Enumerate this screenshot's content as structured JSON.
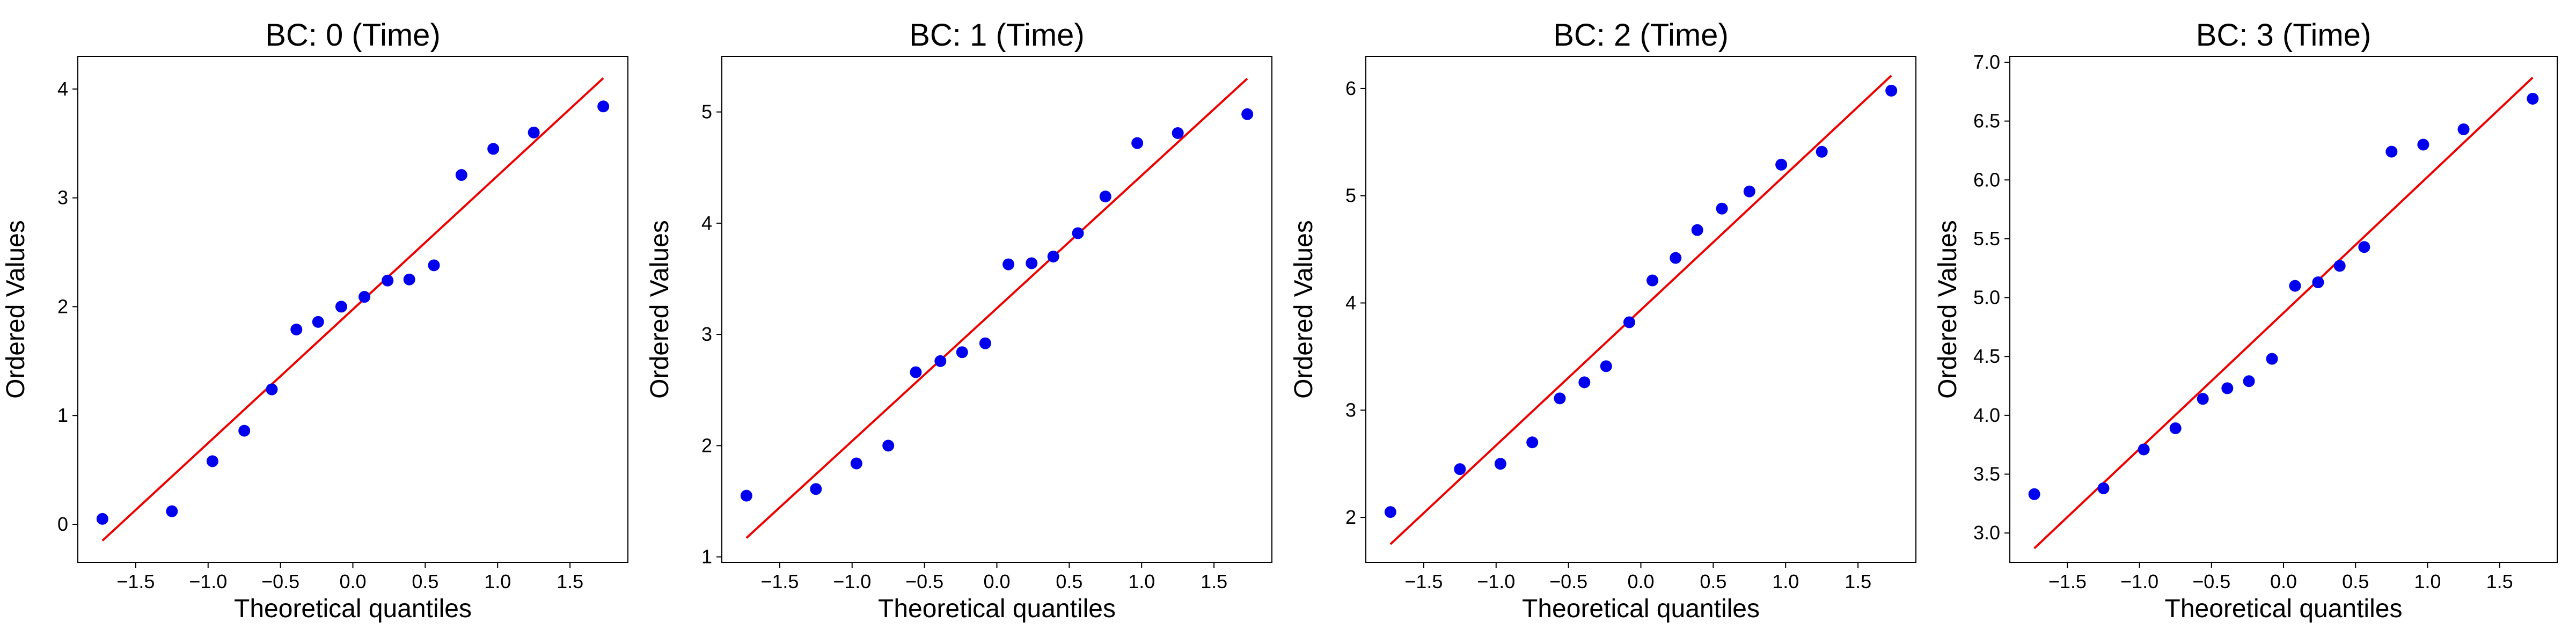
{
  "chart_data": [
    {
      "type": "scatter",
      "title": "BC: 0 (Time)",
      "xlabel": "Theoretical quantiles",
      "ylabel": "Ordered Values",
      "xlim": [
        -1.9,
        1.9
      ],
      "ylim": [
        -0.35,
        4.3
      ],
      "xticks": [
        -1.5,
        -1.0,
        -0.5,
        0.0,
        0.5,
        1.0,
        1.5
      ],
      "xtick_labels": [
        "−1.5",
        "−1.0",
        "−0.5",
        "0.0",
        "0.5",
        "1.0",
        "1.5"
      ],
      "yticks": [
        0,
        1,
        2,
        3,
        4
      ],
      "ytick_labels": [
        "0",
        "1",
        "2",
        "3",
        "4"
      ],
      "x": [
        -1.73,
        -1.25,
        -0.97,
        -0.75,
        -0.56,
        -0.39,
        -0.24,
        -0.08,
        0.08,
        0.24,
        0.39,
        0.56,
        0.75,
        0.97,
        1.25,
        1.73
      ],
      "y": [
        0.05,
        0.12,
        0.58,
        0.86,
        1.24,
        1.79,
        1.86,
        2.0,
        2.09,
        2.24,
        2.25,
        2.38,
        3.21,
        3.45,
        3.6,
        3.84
      ],
      "fit_line": {
        "x": [
          -1.73,
          1.73
        ],
        "y": [
          -0.15,
          4.1
        ]
      },
      "point_color": "#0000ee",
      "line_color": "#ee0000",
      "grid": false
    },
    {
      "type": "scatter",
      "title": "BC: 1 (Time)",
      "xlabel": "Theoretical quantiles",
      "ylabel": "Ordered Values",
      "xlim": [
        -1.9,
        1.9
      ],
      "ylim": [
        0.95,
        5.5
      ],
      "xticks": [
        -1.5,
        -1.0,
        -0.5,
        0.0,
        0.5,
        1.0,
        1.5
      ],
      "xtick_labels": [
        "−1.5",
        "−1.0",
        "−0.5",
        "0.0",
        "0.5",
        "1.0",
        "1.5"
      ],
      "yticks": [
        1,
        2,
        3,
        4,
        5
      ],
      "ytick_labels": [
        "1",
        "2",
        "3",
        "4",
        "5"
      ],
      "x": [
        -1.73,
        -1.25,
        -0.97,
        -0.75,
        -0.56,
        -0.39,
        -0.24,
        -0.08,
        0.08,
        0.24,
        0.39,
        0.56,
        0.75,
        0.97,
        1.25,
        1.73
      ],
      "y": [
        1.55,
        1.61,
        1.84,
        2.0,
        2.66,
        2.76,
        2.84,
        2.92,
        3.63,
        3.64,
        3.7,
        3.91,
        4.24,
        4.72,
        4.81,
        4.98
      ],
      "fit_line": {
        "x": [
          -1.73,
          1.73
        ],
        "y": [
          1.17,
          5.3
        ]
      },
      "point_color": "#0000ee",
      "line_color": "#ee0000",
      "grid": false
    },
    {
      "type": "scatter",
      "title": "BC: 2 (Time)",
      "xlabel": "Theoretical quantiles",
      "ylabel": "Ordered Values",
      "xlim": [
        -1.9,
        1.9
      ],
      "ylim": [
        1.58,
        6.3
      ],
      "xticks": [
        -1.5,
        -1.0,
        -0.5,
        0.0,
        0.5,
        1.0,
        1.5
      ],
      "xtick_labels": [
        "−1.5",
        "−1.0",
        "−0.5",
        "0.0",
        "0.5",
        "1.0",
        "1.5"
      ],
      "yticks": [
        2,
        3,
        4,
        5,
        6
      ],
      "ytick_labels": [
        "2",
        "3",
        "4",
        "5",
        "6"
      ],
      "x": [
        -1.73,
        -1.25,
        -0.97,
        -0.75,
        -0.56,
        -0.39,
        -0.24,
        -0.08,
        0.08,
        0.24,
        0.39,
        0.56,
        0.75,
        0.97,
        1.25,
        1.73
      ],
      "y": [
        2.05,
        2.45,
        2.5,
        2.7,
        3.11,
        3.26,
        3.41,
        3.82,
        4.21,
        4.42,
        4.68,
        4.88,
        5.04,
        5.29,
        5.41,
        5.98
      ],
      "fit_line": {
        "x": [
          -1.73,
          1.73
        ],
        "y": [
          1.75,
          6.12
        ]
      },
      "point_color": "#0000ee",
      "line_color": "#ee0000",
      "grid": false
    },
    {
      "type": "scatter",
      "title": "BC: 3 (Time)",
      "xlabel": "Theoretical quantiles",
      "ylabel": "Ordered Values",
      "xlim": [
        -1.9,
        1.9
      ],
      "ylim": [
        2.75,
        7.05
      ],
      "xticks": [
        -1.5,
        -1.0,
        -0.5,
        0.0,
        0.5,
        1.0,
        1.5
      ],
      "xtick_labels": [
        "−1.5",
        "−1.0",
        "−0.5",
        "0.0",
        "0.5",
        "1.0",
        "1.5"
      ],
      "yticks": [
        3.0,
        3.5,
        4.0,
        4.5,
        5.0,
        5.5,
        6.0,
        6.5,
        7.0
      ],
      "ytick_labels": [
        "3.0",
        "3.5",
        "4.0",
        "4.5",
        "5.0",
        "5.5",
        "6.0",
        "6.5",
        "7.0"
      ],
      "x": [
        -1.73,
        -1.25,
        -0.97,
        -0.75,
        -0.56,
        -0.39,
        -0.24,
        -0.08,
        0.08,
        0.24,
        0.39,
        0.56,
        0.75,
        0.97,
        1.25,
        1.73
      ],
      "y": [
        3.33,
        3.38,
        3.71,
        3.89,
        4.14,
        4.23,
        4.29,
        4.48,
        5.1,
        5.13,
        5.27,
        5.43,
        6.24,
        6.3,
        6.43,
        6.69
      ],
      "fit_line": {
        "x": [
          -1.73,
          1.73
        ],
        "y": [
          2.87,
          6.87
        ]
      },
      "point_color": "#0000ee",
      "line_color": "#ee0000",
      "grid": false
    }
  ]
}
